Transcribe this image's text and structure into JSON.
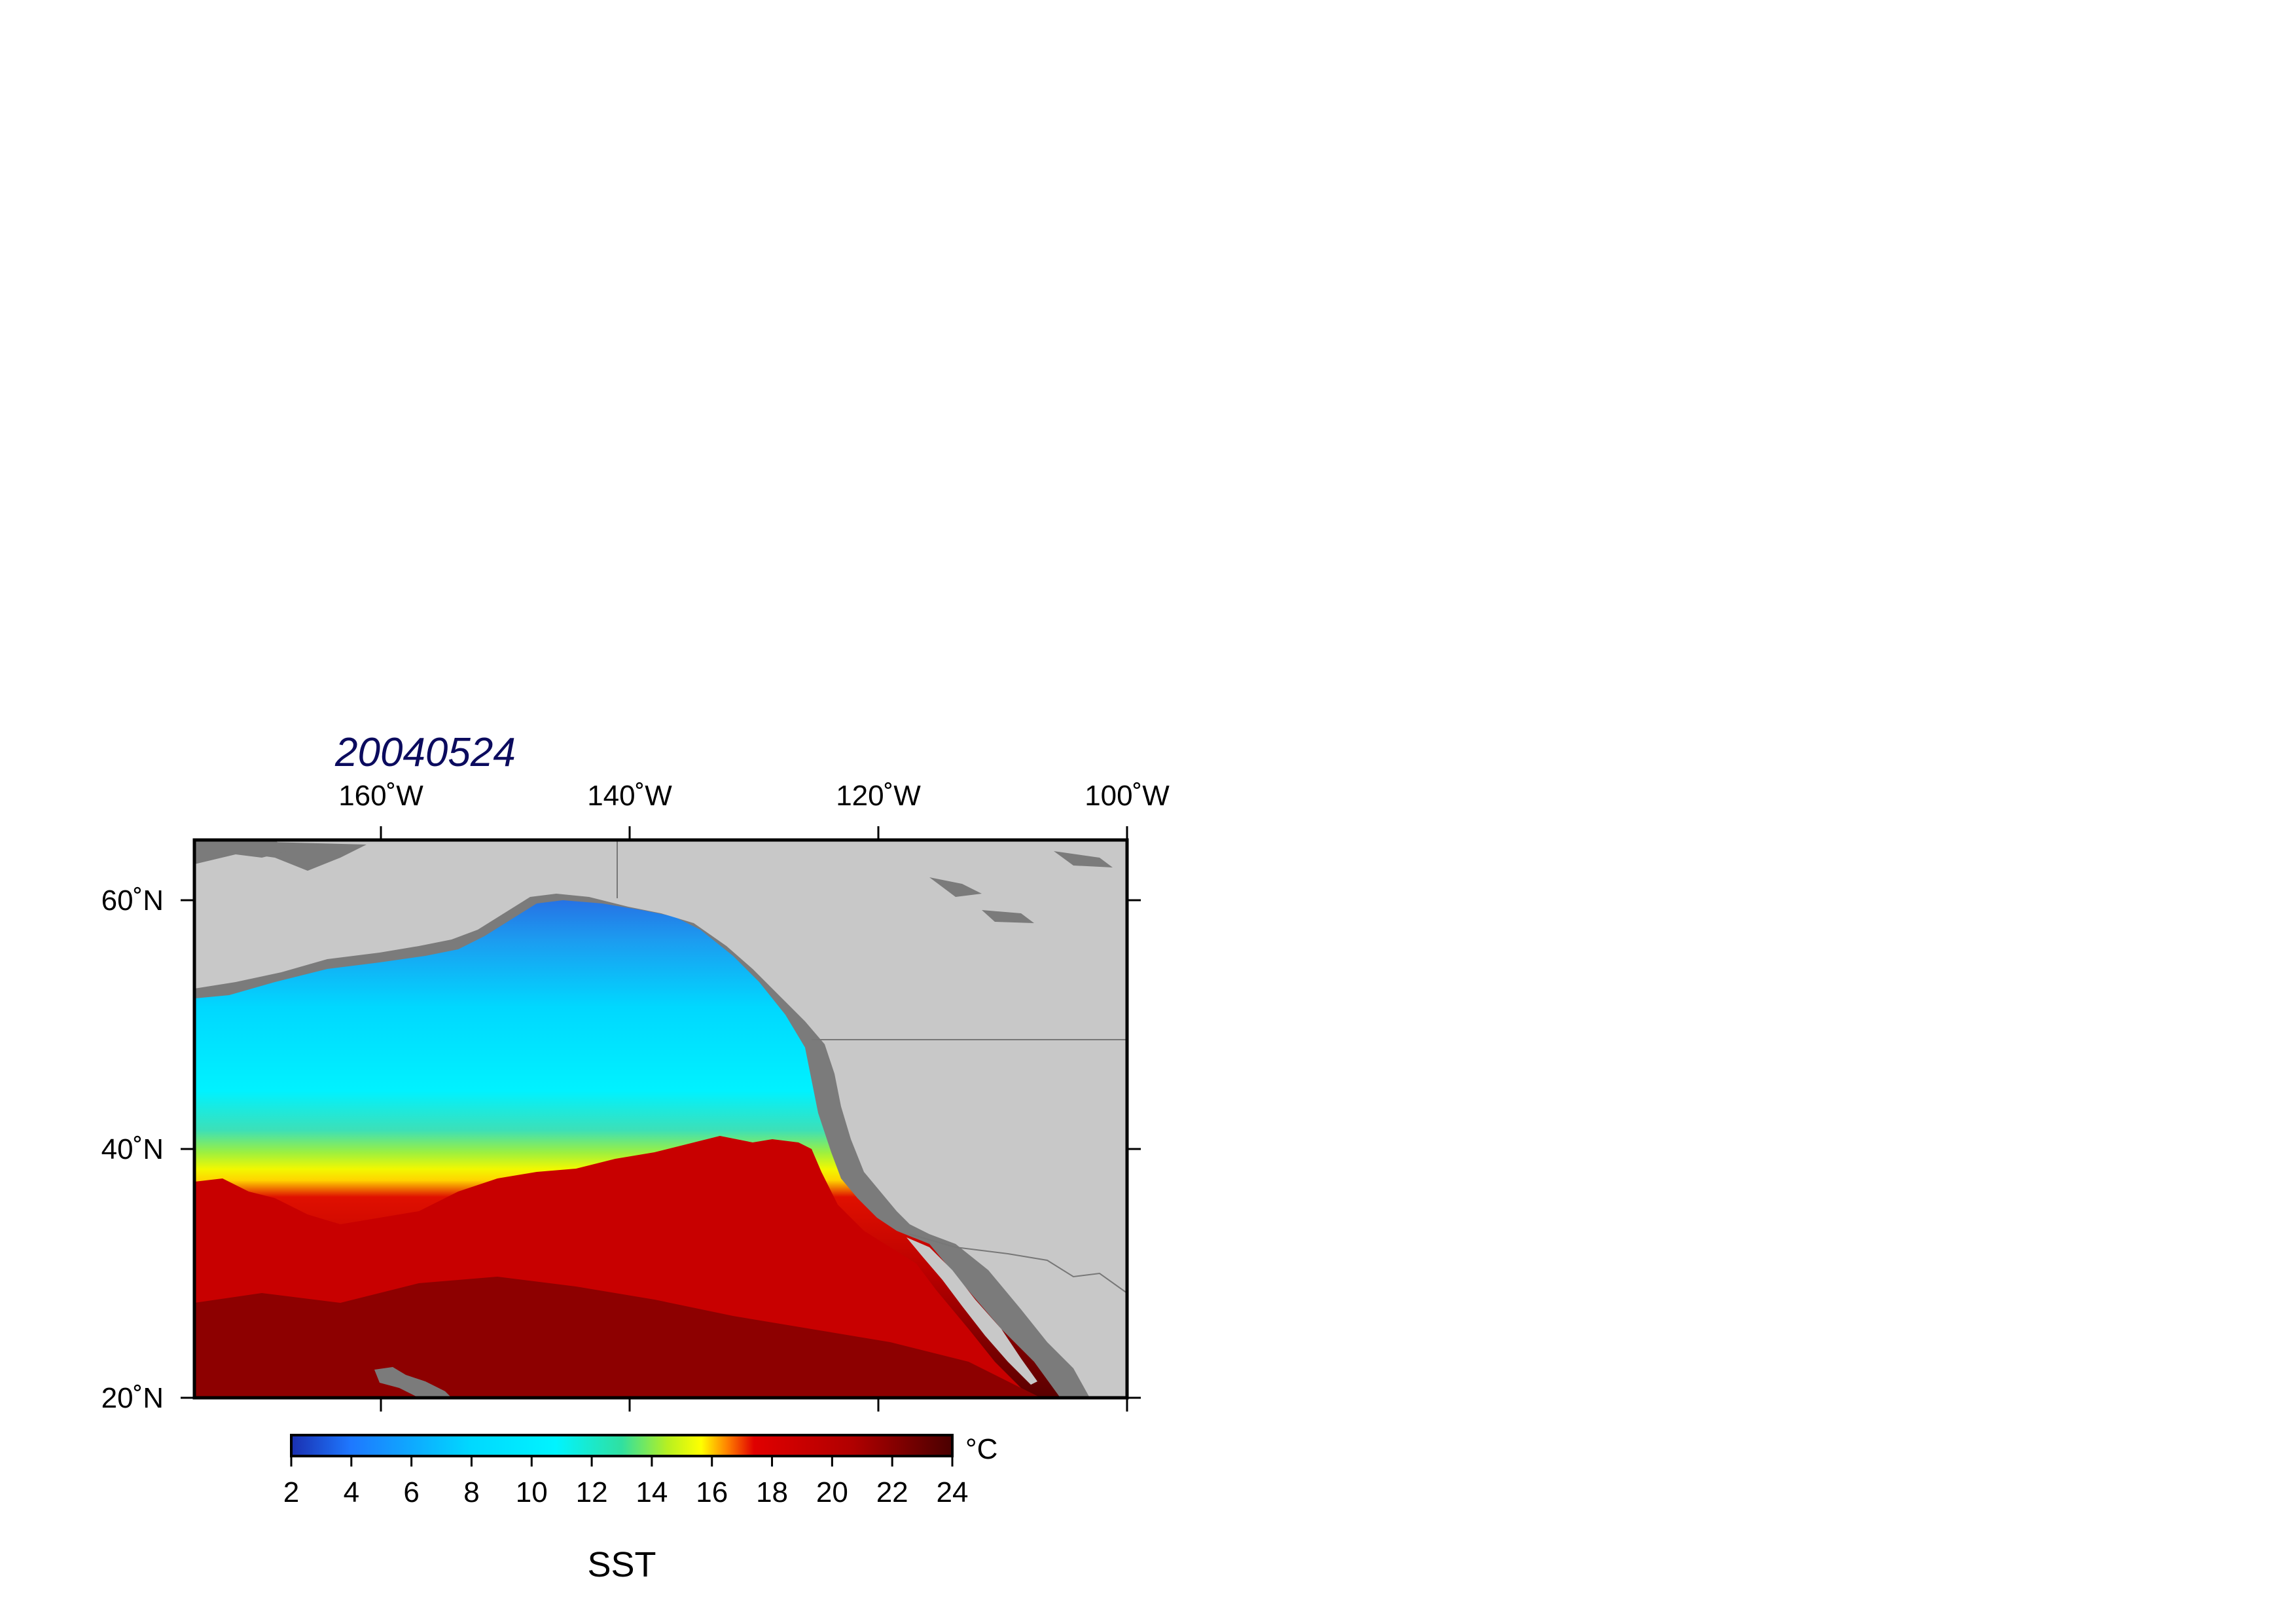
{
  "map": {
    "title": "20040524",
    "lon_ticks": [
      "160˚W",
      "140˚W",
      "120˚W",
      "100˚W"
    ],
    "lat_ticks": [
      "60˚N",
      "40˚N",
      "20˚N"
    ],
    "lon_range": [
      -175,
      -100
    ],
    "lat_range": [
      20,
      65
    ],
    "colors": {
      "land": "#c8c8c8",
      "coast_mask": "#7b7b7b",
      "border_line": "#777777"
    }
  },
  "colorbar": {
    "unit": "°C",
    "label": "SST",
    "ticks": [
      "2",
      "4",
      "6",
      "8",
      "10",
      "12",
      "14",
      "16",
      "18",
      "20",
      "22",
      "24"
    ],
    "range": [
      2,
      24
    ],
    "stops": [
      "#1f3fbf",
      "#1e90ff",
      "#00c8ff",
      "#00f0ff",
      "#20e080",
      "#d8f000",
      "#ffff00",
      "#ff7000",
      "#e00000",
      "#b00000",
      "#5a0000"
    ]
  }
}
